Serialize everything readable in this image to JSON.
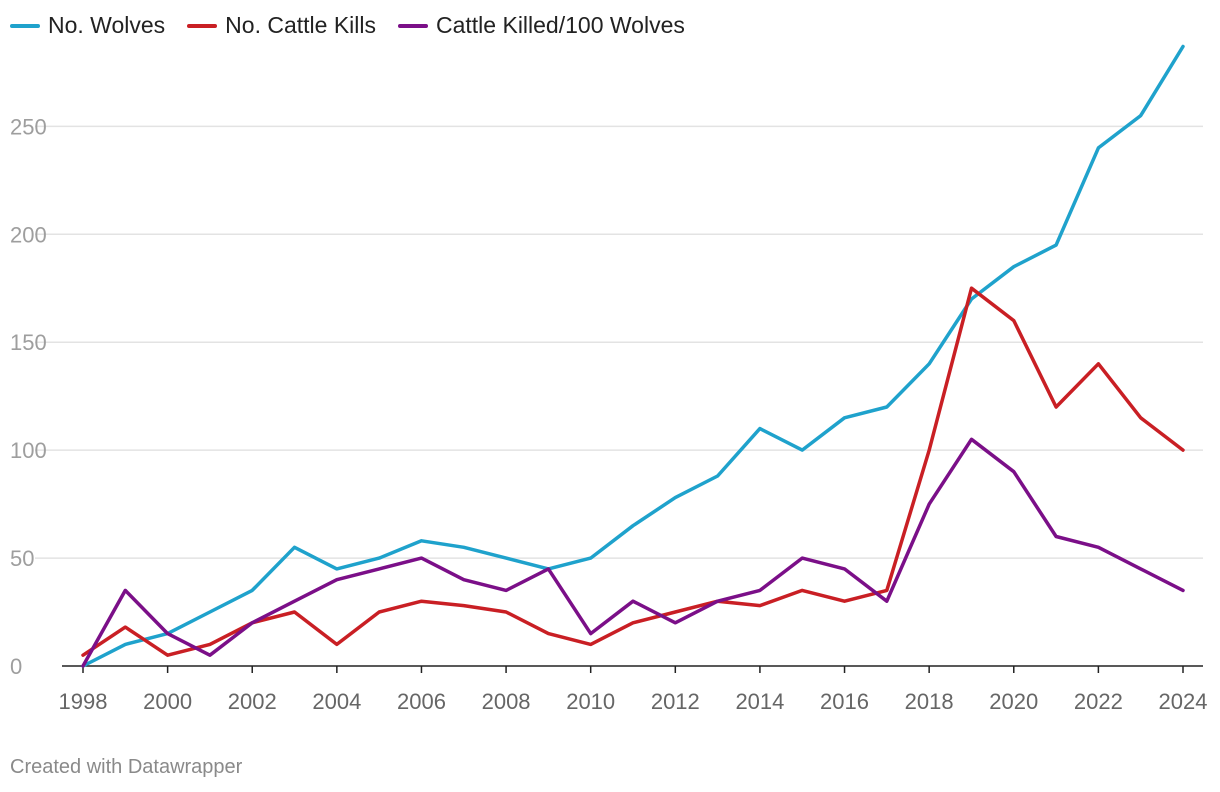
{
  "chart_data": {
    "type": "line",
    "title": "",
    "xlabel": "",
    "ylabel": "",
    "x": [
      1998,
      1999,
      2000,
      2001,
      2002,
      2003,
      2004,
      2005,
      2006,
      2007,
      2008,
      2009,
      2010,
      2011,
      2012,
      2013,
      2014,
      2015,
      2016,
      2017,
      2018,
      2019,
      2020,
      2021,
      2022,
      2023,
      2024
    ],
    "xlim": [
      1998,
      2024
    ],
    "ylim": [
      0,
      290
    ],
    "x_ticks": [
      "1998",
      "2000",
      "2002",
      "2004",
      "2006",
      "2008",
      "2010",
      "2012",
      "2014",
      "2016",
      "2018",
      "2020",
      "2022",
      "2024"
    ],
    "y_ticks": [
      "0",
      "50",
      "100",
      "150",
      "200",
      "250"
    ],
    "grid": "horizontal",
    "legend_position": "top-left",
    "series": [
      {
        "name": "No. Wolves",
        "color": "#1fa2cc",
        "values": [
          0,
          10,
          15,
          25,
          35,
          55,
          45,
          50,
          58,
          55,
          50,
          45,
          50,
          65,
          78,
          88,
          110,
          100,
          115,
          120,
          140,
          170,
          185,
          195,
          240,
          255,
          287
        ]
      },
      {
        "name": "No. Cattle Kills",
        "color": "#c91f24",
        "values": [
          5,
          18,
          5,
          10,
          20,
          25,
          10,
          25,
          30,
          28,
          25,
          15,
          10,
          20,
          25,
          30,
          28,
          35,
          30,
          35,
          100,
          175,
          160,
          120,
          140,
          115,
          100
        ]
      },
      {
        "name": "Cattle Killed/100 Wolves",
        "color": "#7b0f88",
        "values": [
          0,
          35,
          15,
          5,
          20,
          30,
          40,
          45,
          50,
          40,
          35,
          45,
          15,
          30,
          20,
          30,
          35,
          50,
          45,
          30,
          75,
          105,
          90,
          60,
          55,
          45,
          35
        ]
      }
    ]
  },
  "credit": "Created with Datawrapper"
}
